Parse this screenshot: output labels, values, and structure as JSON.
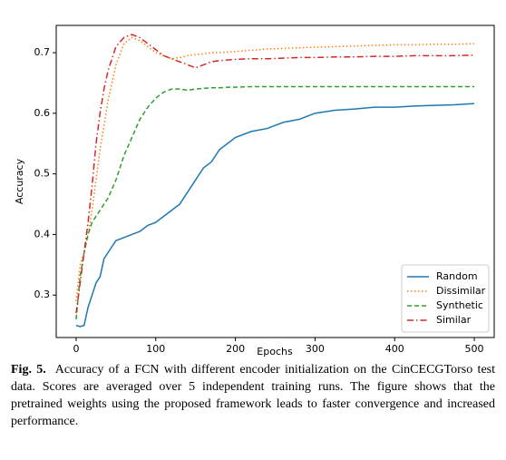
{
  "chart_data": {
    "type": "line",
    "xlabel": "Epochs",
    "ylabel": "Accuracy",
    "x": [
      0,
      5,
      10,
      15,
      20,
      25,
      30,
      35,
      40,
      50,
      60,
      70,
      80,
      90,
      100,
      110,
      120,
      130,
      140,
      150,
      160,
      170,
      180,
      190,
      200,
      220,
      240,
      260,
      280,
      300,
      325,
      350,
      375,
      400,
      425,
      450,
      475,
      500
    ],
    "series": [
      {
        "name": "Random",
        "color": "#1f77b4",
        "linestyle": "solid",
        "values": [
          0.25,
          0.248,
          0.25,
          0.28,
          0.3,
          0.32,
          0.33,
          0.36,
          0.37,
          0.39,
          0.395,
          0.4,
          0.405,
          0.415,
          0.42,
          0.43,
          0.44,
          0.45,
          0.47,
          0.49,
          0.51,
          0.52,
          0.54,
          0.55,
          0.56,
          0.57,
          0.575,
          0.585,
          0.59,
          0.6,
          0.605,
          0.607,
          0.61,
          0.61,
          0.612,
          0.613,
          0.614,
          0.616
        ]
      },
      {
        "name": "Dissimilar",
        "color": "#ff7f0e",
        "linestyle": "dotted",
        "values": [
          0.29,
          0.35,
          0.37,
          0.4,
          0.44,
          0.49,
          0.54,
          0.58,
          0.62,
          0.68,
          0.715,
          0.725,
          0.72,
          0.71,
          0.7,
          0.695,
          0.69,
          0.692,
          0.695,
          0.697,
          0.698,
          0.7,
          0.7,
          0.701,
          0.702,
          0.704,
          0.706,
          0.707,
          0.708,
          0.709,
          0.71,
          0.711,
          0.712,
          0.713,
          0.713,
          0.714,
          0.714,
          0.715
        ]
      },
      {
        "name": "Synthetic",
        "color": "#2ca02c",
        "linestyle": "dashed",
        "values": [
          0.26,
          0.33,
          0.37,
          0.4,
          0.42,
          0.43,
          0.44,
          0.45,
          0.46,
          0.49,
          0.53,
          0.56,
          0.59,
          0.61,
          0.625,
          0.635,
          0.64,
          0.64,
          0.638,
          0.64,
          0.641,
          0.642,
          0.642,
          0.643,
          0.643,
          0.644,
          0.644,
          0.644,
          0.644,
          0.644,
          0.644,
          0.644,
          0.644,
          0.644,
          0.644,
          0.644,
          0.644,
          0.644
        ]
      },
      {
        "name": "Similar",
        "color": "#d62728",
        "linestyle": "dashdot",
        "values": [
          0.27,
          0.32,
          0.37,
          0.42,
          0.48,
          0.55,
          0.6,
          0.64,
          0.67,
          0.71,
          0.725,
          0.73,
          0.725,
          0.715,
          0.705,
          0.695,
          0.69,
          0.685,
          0.68,
          0.675,
          0.68,
          0.685,
          0.687,
          0.688,
          0.689,
          0.69,
          0.69,
          0.691,
          0.692,
          0.692,
          0.693,
          0.693,
          0.694,
          0.694,
          0.695,
          0.695,
          0.695,
          0.696
        ]
      }
    ],
    "xlim": [
      -25,
      525
    ],
    "xticks": [
      0,
      100,
      200,
      300,
      400,
      500
    ],
    "ylim": [
      0.23,
      0.745
    ],
    "yticks": [
      0.3,
      0.4,
      0.5,
      0.6,
      0.7
    ],
    "legend": "lower right",
    "grid": false
  },
  "caption_label": "Fig. 5.",
  "caption_text": "Accuracy of a FCN with different encoder initialization on the CinCECGTorso test data. Scores are averaged over 5 independent training runs. The figure shows that the pretrained weights using the proposed framework leads to faster convergence and increased performance."
}
